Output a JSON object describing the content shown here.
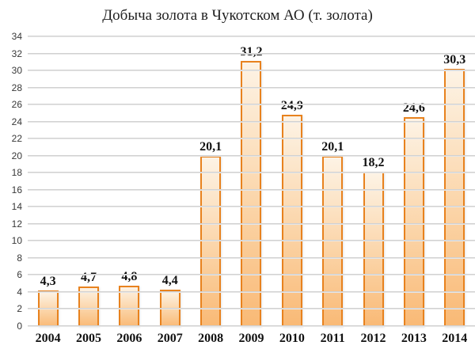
{
  "chart_data": {
    "type": "bar",
    "title": "Добыча золота в Чукотском АО (т. золота)",
    "categories": [
      "2004",
      "2005",
      "2006",
      "2007",
      "2008",
      "2009",
      "2010",
      "2011",
      "2012",
      "2013",
      "2014"
    ],
    "values": [
      4.3,
      4.7,
      4.8,
      4.4,
      20.1,
      31.2,
      24.9,
      20.1,
      18.2,
      24.6,
      30.3
    ],
    "value_labels": [
      "4,3",
      "4,7",
      "4,8",
      "4,4",
      "20,1",
      "31,2",
      "24,9",
      "20,1",
      "18,2",
      "24,6",
      "30,3"
    ],
    "xlabel": "",
    "ylabel": "",
    "ylim": [
      0,
      34
    ],
    "yticks": [
      0,
      2,
      4,
      6,
      8,
      10,
      12,
      14,
      16,
      18,
      20,
      22,
      24,
      26,
      28,
      30,
      32,
      34
    ],
    "grid": "horizontal",
    "legend": "none",
    "colors": {
      "bar_fill_top": "#fdf3e5",
      "bar_fill_bottom": "#f9b975",
      "bar_border": "#e8821e",
      "gridline": "#c6c6c6",
      "title_text": "#1f1f1f",
      "tick_text": "#383838",
      "label_text": "#111111",
      "background": "#ffffff"
    }
  }
}
